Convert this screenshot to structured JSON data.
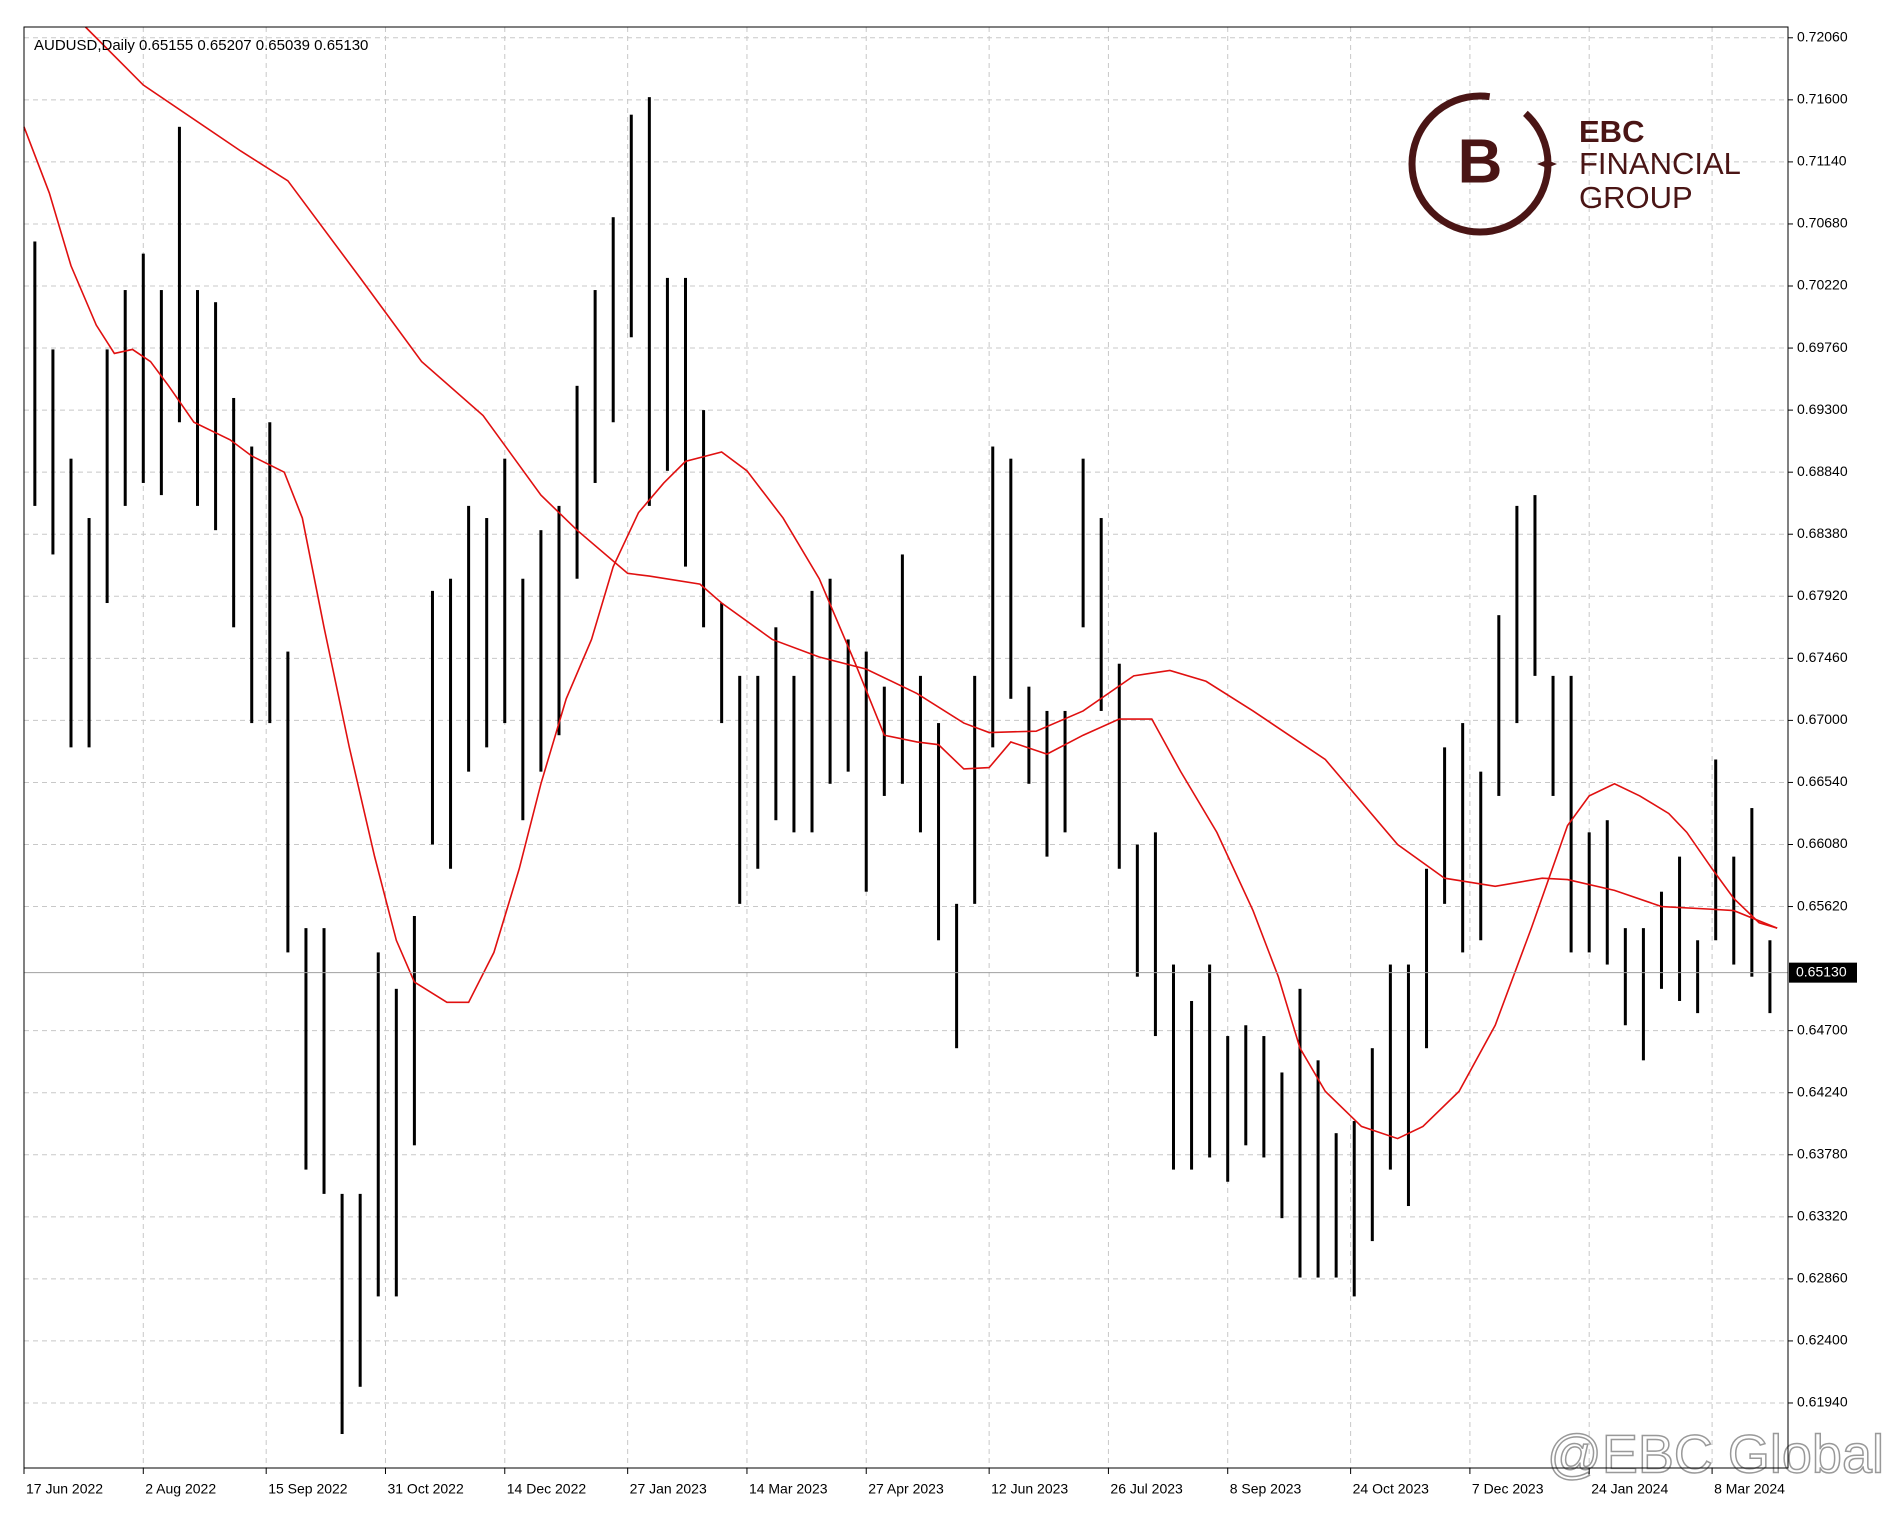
{
  "chart_data": {
    "type": "ohlc",
    "title": "AUDUSD,Daily  0.65155 0.65207 0.65039 0.65130",
    "color": "#000000",
    "x": [
      3,
      8,
      13,
      18,
      23,
      28,
      33,
      38,
      43,
      48,
      53,
      58,
      63,
      68,
      73,
      78,
      83,
      88,
      93,
      98,
      103,
      108,
      113,
      118,
      123,
      128,
      133,
      138,
      143,
      148,
      153,
      158,
      163,
      168,
      173,
      178,
      183,
      188,
      193,
      198,
      203,
      208,
      213,
      218,
      223,
      228,
      233,
      238,
      243,
      248,
      253,
      258,
      263,
      268,
      273,
      278,
      283,
      288,
      293,
      298,
      303,
      308,
      313,
      318,
      323,
      328,
      333,
      338,
      343,
      348,
      353,
      358,
      363,
      368,
      373,
      378,
      383,
      388,
      393,
      398,
      403,
      408,
      413,
      418,
      423,
      428,
      433,
      438,
      443,
      448,
      453,
      458,
      463,
      468,
      473,
      478,
      483
    ],
    "high": [
      0.7055,
      0.6975,
      0.6894,
      0.685,
      0.6975,
      0.7019,
      0.7046,
      0.7019,
      0.714,
      0.7019,
      0.701,
      0.6939,
      0.6903,
      0.6921,
      0.6751,
      0.6546,
      0.6546,
      0.6349,
      0.6349,
      0.6528,
      0.6501,
      0.6555,
      0.6796,
      0.6805,
      0.6859,
      0.685,
      0.6894,
      0.6805,
      0.6841,
      0.6859,
      0.6948,
      0.7019,
      0.7073,
      0.7149,
      0.7162,
      0.7028,
      0.7028,
      0.693,
      0.6787,
      0.6733,
      0.6733,
      0.6769,
      0.6733,
      0.6796,
      0.6805,
      0.676,
      0.6751,
      0.6725,
      0.6823,
      0.6733,
      0.6698,
      0.6564,
      0.6733,
      0.6903,
      0.6894,
      0.6725,
      0.6707,
      0.6707,
      0.6894,
      0.685,
      0.6742,
      0.6608,
      0.6617,
      0.6519,
      0.6492,
      0.6519,
      0.6466,
      0.6474,
      0.6466,
      0.6439,
      0.6501,
      0.6448,
      0.6394,
      0.6403,
      0.6457,
      0.6519,
      0.6519,
      0.659,
      0.668,
      0.6698,
      0.6662,
      0.6778,
      0.6859,
      0.6867,
      0.6733,
      0.6733,
      0.6617,
      0.6626,
      0.6546,
      0.6546,
      0.6573,
      0.6599,
      0.6537,
      0.6671,
      0.6599,
      0.6635,
      0.6537
    ],
    "low": [
      0.6859,
      0.6823,
      0.668,
      0.668,
      0.6787,
      0.6859,
      0.6876,
      0.6867,
      0.6921,
      0.6859,
      0.6841,
      0.6769,
      0.6698,
      0.6698,
      0.6528,
      0.6367,
      0.6349,
      0.6171,
      0.6206,
      0.6273,
      0.6273,
      0.6385,
      0.6608,
      0.659,
      0.6662,
      0.668,
      0.6698,
      0.6626,
      0.6662,
      0.6689,
      0.6805,
      0.6876,
      0.6921,
      0.6984,
      0.6859,
      0.6885,
      0.6814,
      0.6769,
      0.6698,
      0.6564,
      0.659,
      0.6626,
      0.6617,
      0.6617,
      0.6653,
      0.6662,
      0.6573,
      0.6644,
      0.6653,
      0.6617,
      0.6537,
      0.6457,
      0.6564,
      0.668,
      0.6716,
      0.6653,
      0.6599,
      0.6617,
      0.6769,
      0.6707,
      0.659,
      0.651,
      0.6466,
      0.6367,
      0.6367,
      0.6376,
      0.6358,
      0.6385,
      0.6376,
      0.6331,
      0.6287,
      0.6287,
      0.6287,
      0.6273,
      0.6314,
      0.6367,
      0.634,
      0.6457,
      0.6564,
      0.6528,
      0.6537,
      0.6644,
      0.6698,
      0.6733,
      0.6644,
      0.6528,
      0.6528,
      0.6519,
      0.6474,
      0.6448,
      0.6501,
      0.6492,
      0.6483,
      0.6537,
      0.6519,
      0.651,
      0.6483
    ],
    "ma_lines": [
      {
        "color": "#e01010",
        "x": [
          17,
          33,
          60,
          73,
          93,
          110,
          127,
          143,
          153,
          167,
          173,
          187,
          193,
          207,
          220,
          233,
          247,
          260,
          267,
          280,
          293,
          307,
          317,
          327,
          340,
          360,
          380,
          393,
          407,
          420,
          427,
          440,
          453,
          467,
          473,
          485
        ],
        "values": [
          0.7214,
          0.7171,
          0.7122,
          0.71,
          0.7028,
          0.6966,
          0.6926,
          0.6867,
          0.6841,
          0.6809,
          0.6807,
          0.6801,
          0.6787,
          0.676,
          0.6747,
          0.6738,
          0.672,
          0.6698,
          0.6691,
          0.6692,
          0.6707,
          0.6733,
          0.6737,
          0.6729,
          0.6707,
          0.6671,
          0.6608,
          0.6583,
          0.6577,
          0.6583,
          0.6582,
          0.6574,
          0.6562,
          0.656,
          0.6559,
          0.6546
        ]
      },
      {
        "color": "#e01010",
        "x": [
          0,
          7,
          13,
          20,
          25,
          30,
          35,
          40,
          47,
          57,
          63,
          72,
          77,
          83,
          90,
          97,
          103,
          108,
          117,
          123,
          130,
          137,
          143,
          150,
          157,
          163,
          170,
          177,
          183,
          193,
          200,
          210,
          220,
          230,
          238,
          247,
          253,
          260,
          267,
          273,
          283,
          293,
          303,
          312,
          320,
          330,
          340,
          347,
          353,
          360,
          370,
          380,
          387,
          397,
          407,
          417,
          427,
          433,
          440,
          447,
          455,
          460,
          467,
          473,
          480,
          485
        ],
        "values": [
          0.714,
          0.7091,
          0.7037,
          0.6993,
          0.6972,
          0.6975,
          0.6966,
          0.6948,
          0.6921,
          0.6908,
          0.6896,
          0.6884,
          0.685,
          0.6769,
          0.668,
          0.6599,
          0.6537,
          0.6506,
          0.6491,
          0.6491,
          0.6528,
          0.659,
          0.6653,
          0.6716,
          0.676,
          0.6814,
          0.6854,
          0.6876,
          0.6892,
          0.6899,
          0.6885,
          0.685,
          0.6805,
          0.6742,
          0.6689,
          0.6684,
          0.6682,
          0.6664,
          0.6665,
          0.6684,
          0.6675,
          0.6689,
          0.6701,
          0.6701,
          0.6662,
          0.6617,
          0.6559,
          0.651,
          0.6457,
          0.6425,
          0.6399,
          0.639,
          0.6399,
          0.6425,
          0.6474,
          0.6546,
          0.6622,
          0.6644,
          0.6653,
          0.6644,
          0.6631,
          0.6617,
          0.659,
          0.6568,
          0.655,
          0.6546
        ]
      }
    ],
    "last_price": {
      "value": 0.6513,
      "label": "0.65130"
    },
    "xlim": [
      0,
      488
    ],
    "ylim": [
      0.61458,
      0.7214
    ],
    "grid": true,
    "xticks": [
      {
        "value": 0,
        "label": "17 Jun 2022"
      },
      {
        "value": 33,
        "label": "2 Aug 2022"
      },
      {
        "value": 67,
        "label": "15 Sep 2022"
      },
      {
        "value": 100,
        "label": "31 Oct 2022"
      },
      {
        "value": 133,
        "label": "14 Dec 2022"
      },
      {
        "value": 167,
        "label": "27 Jan 2023"
      },
      {
        "value": 200,
        "label": "14 Mar 2023"
      },
      {
        "value": 233,
        "label": "27 Apr 2023"
      },
      {
        "value": 267,
        "label": "12 Jun 2023"
      },
      {
        "value": 300,
        "label": "26 Jul 2023"
      },
      {
        "value": 333,
        "label": "8 Sep 2023"
      },
      {
        "value": 367,
        "label": "24 Oct 2023"
      },
      {
        "value": 400,
        "label": "7 Dec 2023"
      },
      {
        "value": 433,
        "label": "24 Jan 2024"
      },
      {
        "value": 467,
        "label": "8 Mar 2024"
      }
    ],
    "yticks": [
      {
        "value": 0.7206,
        "label": "0.72060"
      },
      {
        "value": 0.716,
        "label": "0.71600"
      },
      {
        "value": 0.7114,
        "label": "0.71140"
      },
      {
        "value": 0.7068,
        "label": "0.70680"
      },
      {
        "value": 0.7022,
        "label": "0.70220"
      },
      {
        "value": 0.6976,
        "label": "0.69760"
      },
      {
        "value": 0.693,
        "label": "0.69300"
      },
      {
        "value": 0.6884,
        "label": "0.68840"
      },
      {
        "value": 0.6838,
        "label": "0.68380"
      },
      {
        "value": 0.6792,
        "label": "0.67920"
      },
      {
        "value": 0.6746,
        "label": "0.67460"
      },
      {
        "value": 0.67,
        "label": "0.67000"
      },
      {
        "value": 0.6654,
        "label": "0.66540"
      },
      {
        "value": 0.6608,
        "label": "0.66080"
      },
      {
        "value": 0.6562,
        "label": "0.65620"
      },
      {
        "value": 0.647,
        "label": "0.64700"
      },
      {
        "value": 0.6424,
        "label": "0.64240"
      },
      {
        "value": 0.6378,
        "label": "0.63780"
      },
      {
        "value": 0.6332,
        "label": "0.63320"
      },
      {
        "value": 0.6286,
        "label": "0.62860"
      },
      {
        "value": 0.624,
        "label": "0.62400"
      },
      {
        "value": 0.6194,
        "label": "0.61940"
      }
    ],
    "logo": {
      "name": "EBC",
      "line1": "FINANCIAL",
      "line2": "GROUP"
    },
    "watermark": "@EBC Global"
  }
}
